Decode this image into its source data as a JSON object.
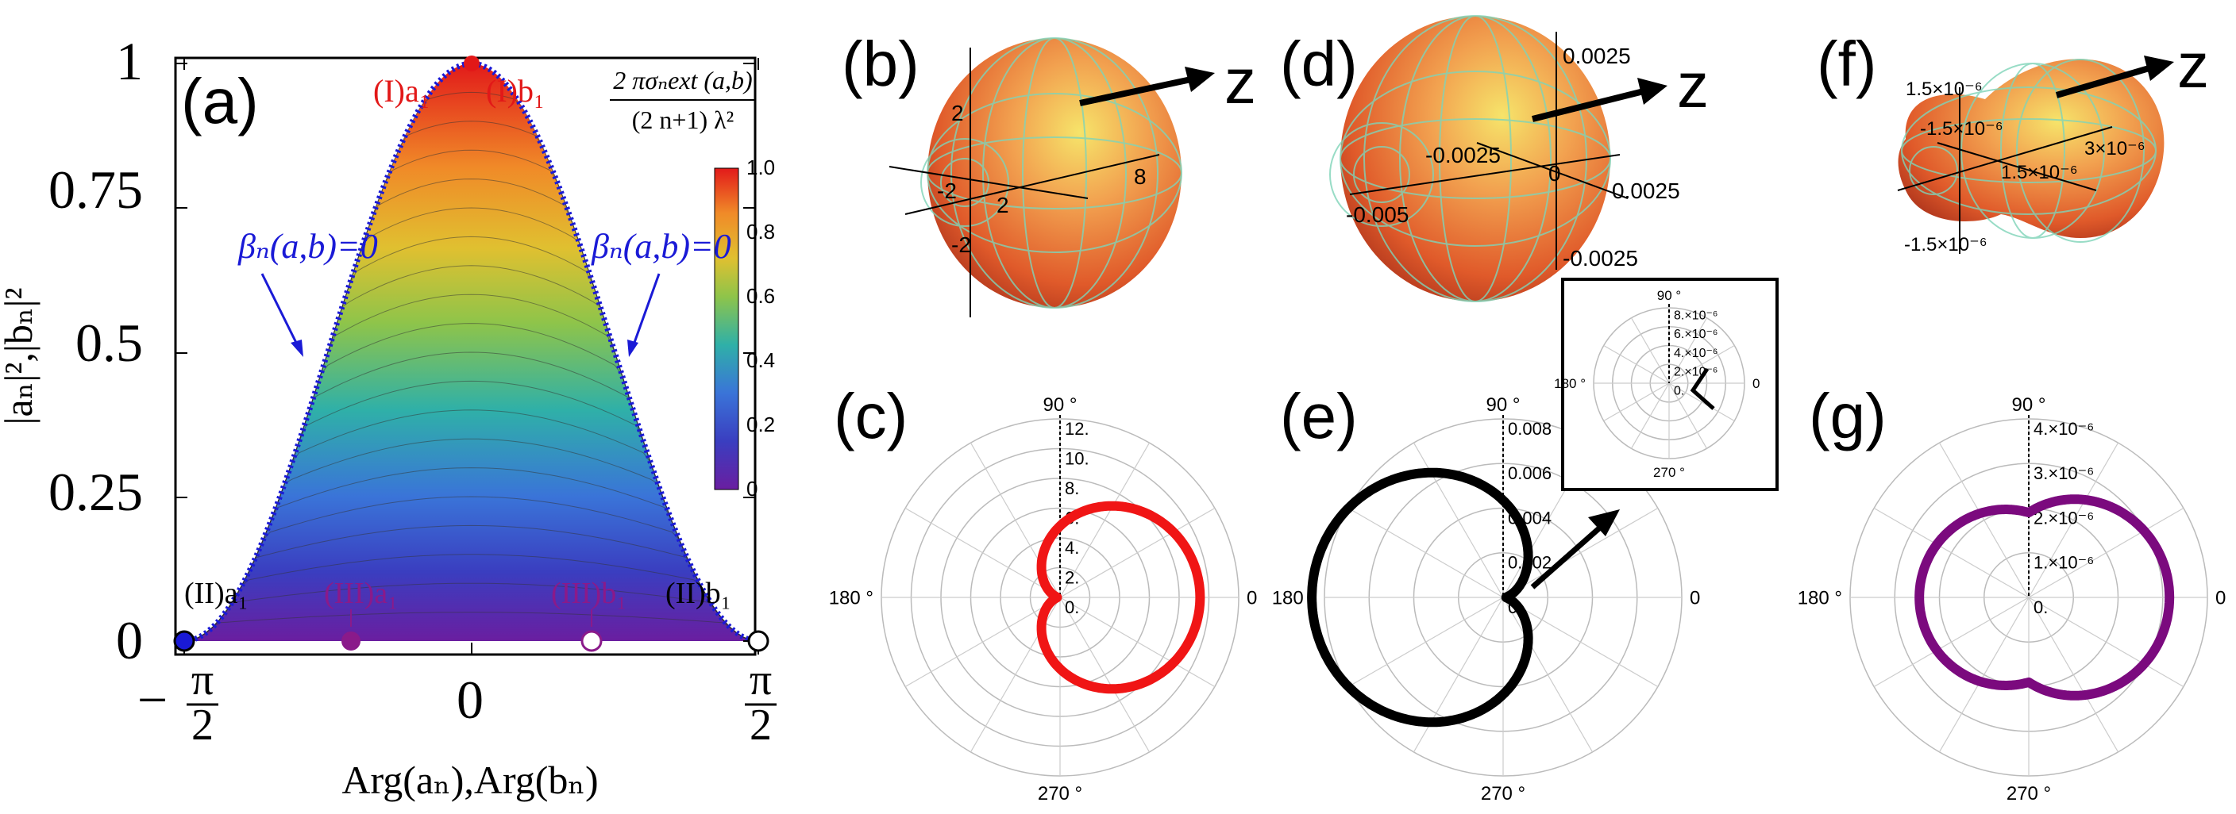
{
  "panel_a": {
    "label": "(a)",
    "y_ticks": [
      "1",
      "0.75",
      "0.5",
      "0.25",
      "0"
    ],
    "x_ticks": [
      "−",
      "π",
      "2",
      "0",
      "π",
      "2"
    ],
    "xlabel": "Arg(aₙ),Arg(bₙ)",
    "ylabel": "|aₙ|²,|bₙ|²",
    "colorbar_title_num": "2 πσₙext (a,b)",
    "colorbar_title_den": "(2 n+1) λ²",
    "colorbar_ticks": [
      "1.0",
      "0.8",
      "0.6",
      "0.4",
      "0.2",
      "0"
    ],
    "beta_left": "βₙ(a,b)=0",
    "beta_right": "βₙ(a,b)=0",
    "pt_I_a": "(I)a₁",
    "pt_I_b": "(I)b₁",
    "pt_II_a": "(II)a₁",
    "pt_II_b": "(II)b₁",
    "pt_III_a": "(III)a₁",
    "pt_III_b": "(III)b₁"
  },
  "panel_b": {
    "label": "(b)",
    "z": "z",
    "axis_ticks": [
      "2",
      "2",
      "8",
      "-2",
      "-2"
    ]
  },
  "panel_d": {
    "label": "(d)",
    "z": "z",
    "axis_ticks": [
      "0.0025",
      "-0.0025",
      "0",
      "0.0025",
      "-0.005",
      "-0.0025"
    ]
  },
  "panel_f": {
    "label": "(f)",
    "z": "z",
    "axis_ticks": [
      "1.5×10⁻⁶",
      "-1.5×10⁻⁶",
      "3×10⁻⁶",
      "1.5×10⁻⁶",
      "-1.5×10⁻⁶"
    ]
  },
  "panel_c": {
    "label": "(c)",
    "angles": [
      "90 °",
      "180 °",
      "270 °",
      "0"
    ],
    "r_ticks": [
      "12.",
      "10.",
      "8.",
      "6.",
      "4.",
      "2.",
      "0."
    ]
  },
  "panel_e": {
    "label": "(e)",
    "angles": [
      "90 °",
      "180 °",
      "270 °",
      "0"
    ],
    "r_ticks": [
      "0.008",
      "0.006",
      "0.004",
      "0.002",
      "0."
    ]
  },
  "panel_e_inset": {
    "angles": [
      "90 °",
      "180 °",
      "270 °",
      "0"
    ],
    "r_ticks": [
      "8.×10⁻⁶",
      "6.×10⁻⁶",
      "4.×10⁻⁶",
      "2.×10⁻⁶",
      "0."
    ]
  },
  "panel_g": {
    "label": "(g)",
    "angles": [
      "90 °",
      "180 °",
      "270 °",
      "0"
    ],
    "r_ticks": [
      "4.×10⁻⁶",
      "3.×10⁻⁶",
      "2.×10⁻⁶",
      "1.×10⁻⁶",
      "0."
    ]
  },
  "colors": {
    "red_curve": "#f01515",
    "black_curve": "#000000",
    "purple_curve": "#7b0a7e",
    "blue_boundary": "#1a1ad6",
    "red_label": "#e21818",
    "purple_label": "#8a1a8a"
  }
}
